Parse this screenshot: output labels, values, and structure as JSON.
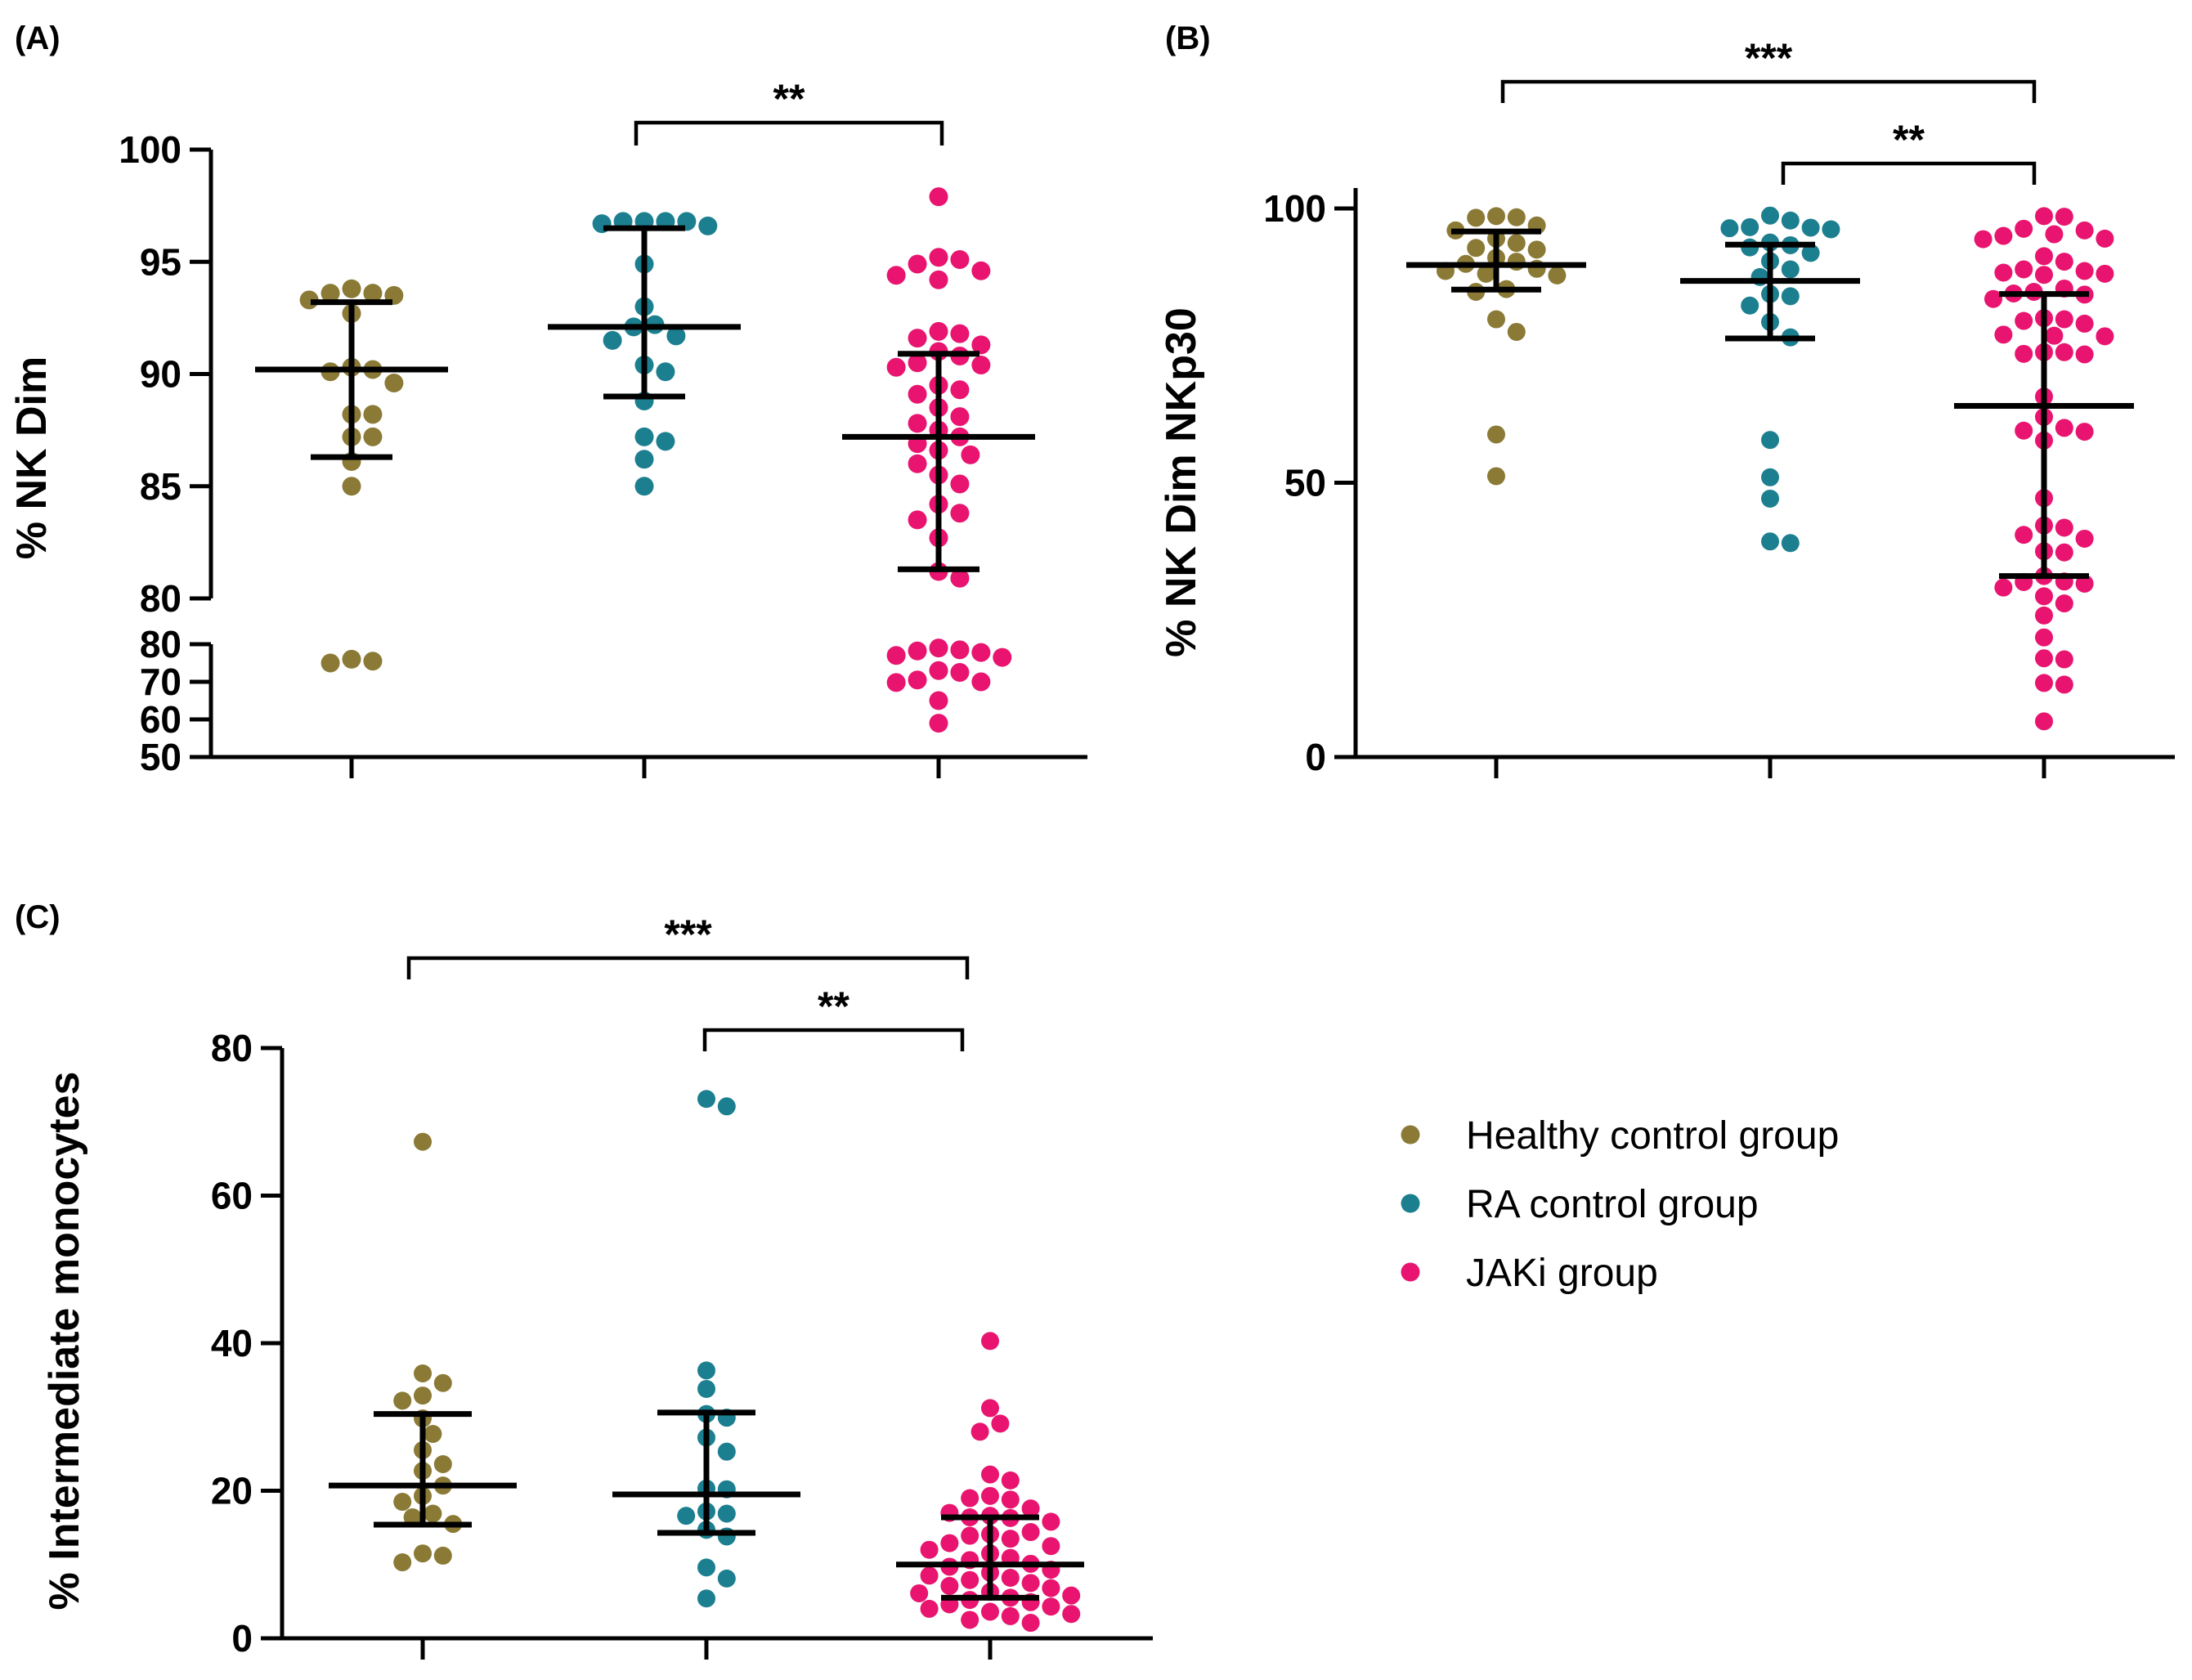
{
  "colors": {
    "healthy": "#8B7A36",
    "ra": "#1C7F90",
    "jaki": "#E8146F"
  },
  "legend": [
    {
      "label": "Healthy control group",
      "color_key": "healthy"
    },
    {
      "label": "RA control group",
      "color_key": "ra"
    },
    {
      "label": "JAKi group",
      "color_key": "jaki"
    }
  ],
  "chart_data": [
    {
      "panel": "(A)",
      "type": "scatter",
      "ylabel": "% NK Dim",
      "broken_axis": true,
      "ylim_upper": [
        80,
        100
      ],
      "yticks_upper": [
        80,
        85,
        90,
        95,
        100
      ],
      "ylim_lower": [
        50,
        80
      ],
      "yticks_lower": [
        50,
        60,
        70,
        80
      ],
      "groups": [
        {
          "group": "Healthy control group",
          "color_key": "healthy",
          "points": [
            93.6,
            93.6,
            93.8,
            93.5,
            93.3,
            92.7,
            90.3,
            90.1,
            90.2,
            89.6,
            88.2,
            88.2,
            87.2,
            87.2,
            86.1,
            85.0,
            76.0,
            75.0,
            75.5
          ],
          "median": 90.2,
          "q1": 86.3,
          "q3": 93.2
        },
        {
          "group": "RA control group",
          "color_key": "ra",
          "points": [
            96.8,
            96.8,
            96.8,
            96.7,
            96.6,
            96.8,
            94.9,
            93.0,
            92.2,
            92.1,
            91.7,
            91.5,
            90.4,
            90.1,
            88.8,
            87.2,
            87.0,
            86.2,
            85.0
          ],
          "median": 92.1,
          "q1": 89.0,
          "q3": 96.5
        },
        {
          "group": "JAKi group",
          "color_key": "jaki",
          "points": [
            97.9,
            95.1,
            94.9,
            95.2,
            94.6,
            94.4,
            94.2,
            91.9,
            91.8,
            91.6,
            91.3,
            91.0,
            90.8,
            90.5,
            90.4,
            90.3,
            89.5,
            89.3,
            89.1,
            88.5,
            88.1,
            87.8,
            87.5,
            87.2,
            86.9,
            86.6,
            86.4,
            86.0,
            85.5,
            85.1,
            84.2,
            83.8,
            83.5,
            82.7,
            81.2,
            80.9,
            79.0,
            78.5,
            77.8,
            78.2,
            77.0,
            76.5,
            73.0,
            72.5,
            70.5,
            70.0,
            69.8,
            65.0,
            59.0
          ],
          "median": 87.2,
          "q1": 81.3,
          "q3": 90.9
        }
      ],
      "comparisons": [
        {
          "from": "RA control group",
          "to": "JAKi group",
          "label": "**"
        }
      ]
    },
    {
      "panel": "(B)",
      "type": "scatter",
      "ylabel": "% NK Dim NKp30",
      "ylim": [
        0,
        100
      ],
      "yticks": [
        0,
        50,
        100
      ],
      "groups": [
        {
          "group": "Healthy control group",
          "color_key": "healthy",
          "points": [
            98.6,
            98.3,
            98.4,
            96.9,
            96.0,
            94.5,
            93.7,
            92.8,
            92.5,
            91.0,
            90.3,
            89.9,
            89.0,
            88.6,
            88.1,
            87.8,
            85.3,
            84.8,
            79.8,
            77.5,
            58.8,
            51.2
          ],
          "median": 89.7,
          "q1": 85.2,
          "q3": 95.8
        },
        {
          "group": "RA control group",
          "color_key": "ra",
          "points": [
            98.7,
            97.8,
            96.6,
            96.2,
            96.5,
            96.4,
            93.8,
            93.3,
            92.9,
            91.9,
            90.4,
            88.9,
            87.5,
            84.4,
            84.0,
            82.3,
            79.3,
            76.5,
            57.8,
            51.0,
            47.1,
            39.3,
            39.0
          ],
          "median": 86.8,
          "q1": 76.3,
          "q3": 93.4
        },
        {
          "group": "JAKi group",
          "color_key": "jaki",
          "points": [
            98.6,
            98.5,
            96.3,
            96.0,
            95.3,
            95.0,
            94.4,
            94.5,
            91.3,
            90.3,
            88.6,
            88.9,
            88.3,
            88.1,
            87.9,
            85.4,
            84.8,
            84.5,
            84.3,
            83.5,
            80.0,
            79.8,
            79.5,
            79.0,
            77.0,
            76.8,
            76.7,
            73.8,
            73.8,
            73.5,
            73.4,
            65.7,
            62.0,
            60.0,
            59.5,
            59.3,
            57.7,
            47.2,
            42.2,
            41.8,
            40.5,
            39.8,
            37.5,
            37.3,
            33.0,
            32.0,
            31.9,
            31.6,
            30.9,
            29.3,
            28.0,
            25.8,
            21.8,
            18.0,
            17.8,
            13.5,
            13.2,
            6.5
          ],
          "median": 64.0,
          "q1": 33.0,
          "q3": 84.4
        }
      ],
      "comparisons": [
        {
          "from": "Healthy control group",
          "to": "JAKi group",
          "label": "***"
        },
        {
          "from": "RA control group",
          "to": "JAKi group",
          "label": "**"
        }
      ]
    },
    {
      "panel": "(C)",
      "type": "scatter",
      "ylabel": "% Intermediate monocytes",
      "ylim": [
        0,
        80
      ],
      "yticks": [
        0,
        20,
        40,
        60,
        80
      ],
      "groups": [
        {
          "group": "Healthy control group",
          "color_key": "healthy",
          "points": [
            67.3,
            35.9,
            34.6,
            32.9,
            32.2,
            29.8,
            27.7,
            25.5,
            23.6,
            22.7,
            20.7,
            19.3,
            18.5,
            16.9,
            16.4,
            15.5,
            11.5,
            11.2,
            10.3
          ],
          "median": 20.7,
          "q1": 15.4,
          "q3": 30.4
        },
        {
          "group": "RA control group",
          "color_key": "ra",
          "points": [
            73.1,
            72.1,
            36.3,
            33.8,
            30.4,
            29.9,
            27.2,
            25.3,
            20.3,
            20.2,
            17.2,
            16.9,
            16.6,
            14.7,
            13.8,
            9.6,
            8.1,
            5.4
          ],
          "median": 19.5,
          "q1": 14.3,
          "q3": 30.6
        },
        {
          "group": "JAKi group",
          "color_key": "jaki",
          "points": [
            40.3,
            31.2,
            29.1,
            28.0,
            22.2,
            21.4,
            19.3,
            19.0,
            18.8,
            17.6,
            17.0,
            16.6,
            16.4,
            16.3,
            15.8,
            14.4,
            14.1,
            13.9,
            13.5,
            12.9,
            12.5,
            12.0,
            11.5,
            10.9,
            10.6,
            10.1,
            9.7,
            9.3,
            8.9,
            8.5,
            8.2,
            7.9,
            7.5,
            7.1,
            6.8,
            6.3,
            6.1,
            5.8,
            5.5,
            5.2,
            4.9,
            4.6,
            4.3,
            4.0,
            3.6,
            3.3,
            3.0,
            2.5,
            2.1
          ],
          "median": 10.0,
          "q1": 5.5,
          "q3": 16.4
        }
      ],
      "comparisons": [
        {
          "from": "Healthy control group",
          "to": "JAKi group",
          "label": "***"
        },
        {
          "from": "RA control group",
          "to": "JAKi group",
          "label": "**"
        }
      ]
    }
  ]
}
